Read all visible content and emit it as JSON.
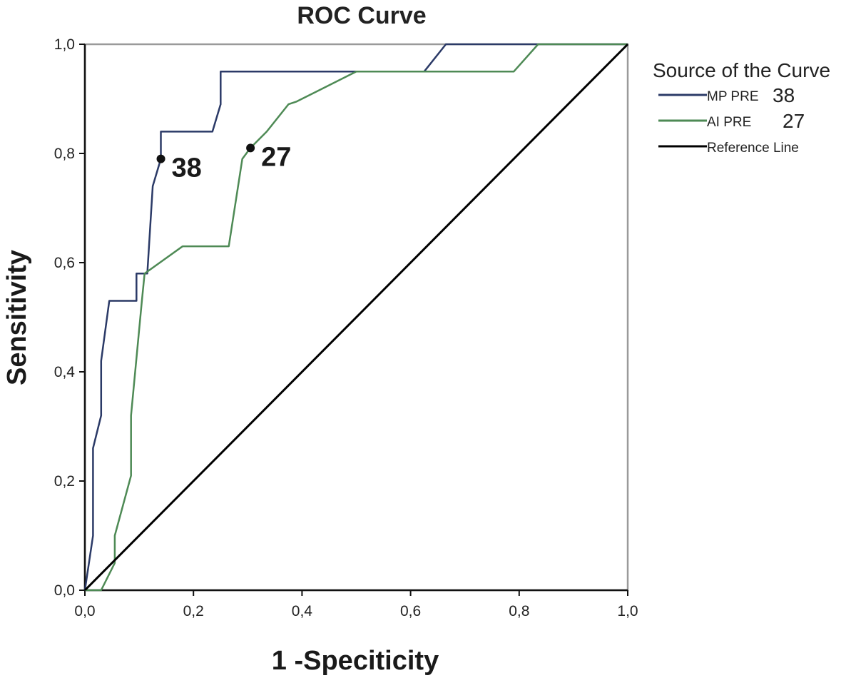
{
  "chart_data": {
    "type": "line",
    "title": "ROC Curve",
    "xlabel": "1 -Speciticity",
    "ylabel": "Sensitivity",
    "xlim": [
      0,
      1
    ],
    "ylim": [
      0,
      1
    ],
    "x_ticks": [
      "0,0",
      "0,2",
      "0,4",
      "0,6",
      "0,8",
      "1,0"
    ],
    "y_ticks": [
      "0,0",
      "0,2",
      "0,4",
      "0,6",
      "0,8",
      "1,0"
    ],
    "grid": false,
    "legend": {
      "title": "Source of the Curve",
      "placement": "top-right",
      "entries": [
        {
          "name": "MP PRE",
          "suffix": "38",
          "color": "#2b3a67"
        },
        {
          "name": "AI PRE",
          "suffix": "27",
          "color": "#4e8a55"
        },
        {
          "name": "Reference Line",
          "suffix": "",
          "color": "#000000"
        }
      ]
    },
    "series": [
      {
        "name": "MP PRE",
        "color": "#2b3a67",
        "points": [
          [
            0,
            0
          ],
          [
            0.015,
            0.1
          ],
          [
            0.015,
            0.26
          ],
          [
            0.03,
            0.32
          ],
          [
            0.03,
            0.42
          ],
          [
            0.045,
            0.53
          ],
          [
            0.095,
            0.53
          ],
          [
            0.095,
            0.58
          ],
          [
            0.115,
            0.58
          ],
          [
            0.125,
            0.74
          ],
          [
            0.14,
            0.79
          ],
          [
            0.14,
            0.84
          ],
          [
            0.235,
            0.84
          ],
          [
            0.25,
            0.89
          ],
          [
            0.25,
            0.95
          ],
          [
            0.625,
            0.95
          ],
          [
            0.665,
            1.0
          ],
          [
            1.0,
            1.0
          ]
        ]
      },
      {
        "name": "AI PRE",
        "color": "#4e8a55",
        "points": [
          [
            0,
            0
          ],
          [
            0.03,
            0
          ],
          [
            0.055,
            0.05
          ],
          [
            0.055,
            0.1
          ],
          [
            0.085,
            0.21
          ],
          [
            0.085,
            0.32
          ],
          [
            0.105,
            0.53
          ],
          [
            0.11,
            0.58
          ],
          [
            0.18,
            0.63
          ],
          [
            0.265,
            0.63
          ],
          [
            0.29,
            0.79
          ],
          [
            0.305,
            0.81
          ],
          [
            0.335,
            0.84
          ],
          [
            0.375,
            0.89
          ],
          [
            0.39,
            0.895
          ],
          [
            0.5,
            0.95
          ],
          [
            0.79,
            0.95
          ],
          [
            0.835,
            1.0
          ],
          [
            1.0,
            1.0
          ]
        ]
      },
      {
        "name": "Reference Line",
        "color": "#000000",
        "points": [
          [
            0,
            0
          ],
          [
            1,
            1
          ]
        ]
      }
    ],
    "annotations": [
      {
        "text": "38",
        "x": 0.14,
        "y": 0.79
      },
      {
        "text": "27",
        "x": 0.305,
        "y": 0.81
      }
    ]
  }
}
